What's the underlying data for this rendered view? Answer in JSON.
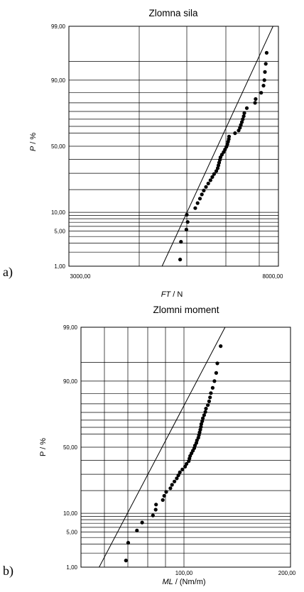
{
  "chart_data": [
    {
      "panel_label": "a)",
      "type": "scatter",
      "title": "Zlomna sila",
      "xlabel_var": "FT",
      "xlabel_unit": " / N",
      "ylabel_var": "P",
      "ylabel_unit": " / %",
      "xscale": "log",
      "yscale": "normal-probability",
      "xlim": [
        3000,
        8000
      ],
      "ylim": [
        1,
        99
      ],
      "x_tick_labels": [
        "3000,00",
        "8000,00"
      ],
      "y_ticks": [
        1,
        5,
        10,
        50,
        90,
        99
      ],
      "y_tick_labels": [
        "1,00",
        "5,00",
        "10,00",
        "50,00",
        "90,00",
        "99,00"
      ],
      "grid": true,
      "points": [
        [
          5050,
          1.4
        ],
        [
          5070,
          3.2
        ],
        [
          5200,
          5.3
        ],
        [
          5230,
          7.1
        ],
        [
          5210,
          9.2
        ],
        [
          5420,
          11.5
        ],
        [
          5480,
          13.5
        ],
        [
          5540,
          15.5
        ],
        [
          5590,
          17.5
        ],
        [
          5640,
          19.5
        ],
        [
          5700,
          21.5
        ],
        [
          5760,
          23.5
        ],
        [
          5820,
          25.5
        ],
        [
          5870,
          27.5
        ],
        [
          5920,
          29.5
        ],
        [
          5980,
          31.5
        ],
        [
          6020,
          33.5
        ],
        [
          6040,
          35.5
        ],
        [
          6060,
          37.5
        ],
        [
          6080,
          39.5
        ],
        [
          6100,
          41.5
        ],
        [
          6140,
          43.5
        ],
        [
          6190,
          45.5
        ],
        [
          6230,
          47.5
        ],
        [
          6270,
          49.5
        ],
        [
          6300,
          51.5
        ],
        [
          6320,
          53.5
        ],
        [
          6340,
          55.5
        ],
        [
          6350,
          57.5
        ],
        [
          6530,
          60
        ],
        [
          6640,
          62
        ],
        [
          6680,
          64
        ],
        [
          6710,
          66
        ],
        [
          6740,
          68
        ],
        [
          6770,
          70
        ],
        [
          6800,
          72
        ],
        [
          6820,
          74
        ],
        [
          6900,
          77
        ],
        [
          7170,
          80
        ],
        [
          7190,
          82
        ],
        [
          7380,
          85
        ],
        [
          7460,
          88
        ],
        [
          7490,
          90
        ],
        [
          7510,
          92.5
        ],
        [
          7540,
          94.5
        ],
        [
          7570,
          96.5
        ]
      ],
      "fit_line": [
        [
          4640,
          1.0
        ],
        [
          7800,
          99.0
        ]
      ]
    },
    {
      "panel_label": "b)",
      "type": "scatter",
      "title": "Zlomni moment",
      "xlabel_var": "ML",
      "xlabel_unit": " / (Nm/m)",
      "ylabel_var": "P",
      "ylabel_unit": " / %",
      "xscale": "log",
      "yscale": "normal-probability",
      "xlim": [
        40,
        200
      ],
      "ylim": [
        1,
        99
      ],
      "x_tick_labels": [
        "100,00",
        "200,00"
      ],
      "y_ticks": [
        1,
        5,
        10,
        50,
        90,
        99
      ],
      "y_tick_labels": [
        "1,00",
        "5,00",
        "10,00",
        "50,00",
        "90,00",
        "99,00"
      ],
      "grid": true,
      "points": [
        [
          56.5,
          1.4
        ],
        [
          57.5,
          3.2
        ],
        [
          61.5,
          5.3
        ],
        [
          64,
          7.2
        ],
        [
          69.5,
          9.3
        ],
        [
          71,
          11.3
        ],
        [
          71.2,
          13.3
        ],
        [
          75,
          15.3
        ],
        [
          75.8,
          17.3
        ],
        [
          77,
          19.3
        ],
        [
          79.5,
          21.3
        ],
        [
          80.5,
          23.3
        ],
        [
          82,
          25.3
        ],
        [
          83.5,
          27.3
        ],
        [
          84.5,
          29.3
        ],
        [
          85.5,
          31.3
        ],
        [
          87.2,
          33.3
        ],
        [
          89,
          35.3
        ],
        [
          90,
          37.3
        ],
        [
          91.5,
          39.3
        ],
        [
          92,
          41.3
        ],
        [
          92.5,
          43.3
        ],
        [
          93.5,
          45.3
        ],
        [
          94.5,
          47.3
        ],
        [
          95.5,
          49.3
        ],
        [
          96,
          51.3
        ],
        [
          97,
          53.3
        ],
        [
          97.5,
          55.3
        ],
        [
          98.5,
          57.3
        ],
        [
          99,
          59.3
        ],
        [
          99.5,
          61.3
        ],
        [
          100,
          63.3
        ],
        [
          100.5,
          65.3
        ],
        [
          100.8,
          67.3
        ],
        [
          101.5,
          69.3
        ],
        [
          102,
          71.3
        ],
        [
          103,
          73.3
        ],
        [
          104,
          75.3
        ],
        [
          104.5,
          77.3
        ],
        [
          106,
          79.3
        ],
        [
          107,
          81.3
        ],
        [
          107.8,
          83.3
        ],
        [
          108.5,
          85.3
        ],
        [
          110,
          87.5
        ],
        [
          111.5,
          90
        ],
        [
          113,
          92.5
        ],
        [
          114,
          94.8
        ],
        [
          117,
          97.5
        ]
      ],
      "fit_line": [
        [
          46,
          1.0
        ],
        [
          121,
          99.0
        ]
      ]
    }
  ]
}
